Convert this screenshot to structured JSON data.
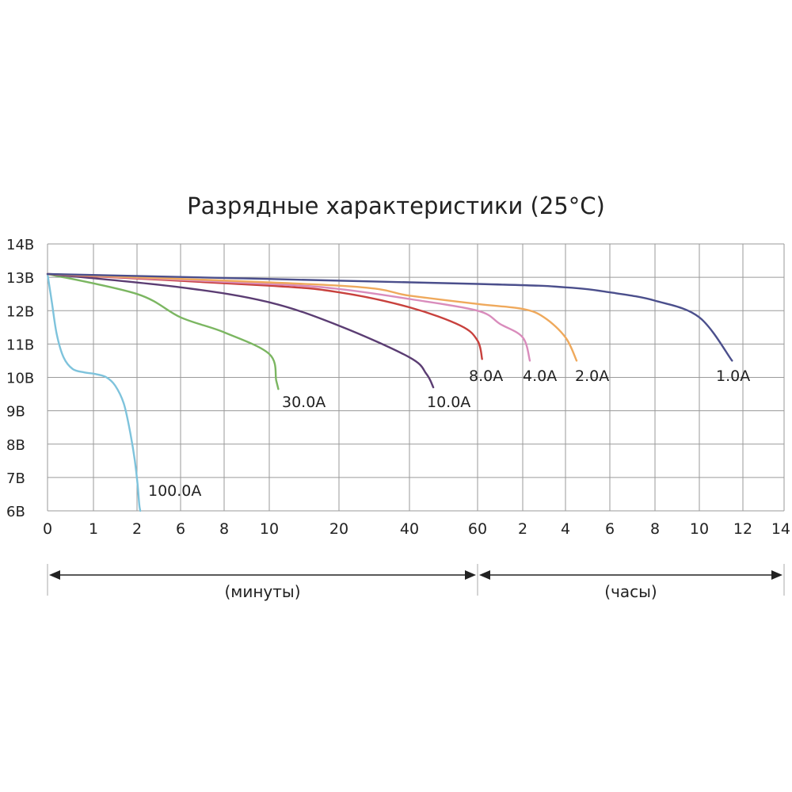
{
  "chart_data": {
    "type": "line",
    "title": "Разрядные характеристики (25°C)",
    "y_ticks": [
      "14В",
      "13В",
      "12В",
      "11В",
      "10В",
      "9В",
      "8В",
      "7В",
      "6В"
    ],
    "y_tick_values": [
      14,
      13,
      12,
      11,
      10,
      9,
      8,
      7,
      6
    ],
    "ylim": [
      6,
      14
    ],
    "x_ticks": [
      "0",
      "1",
      "2",
      "6",
      "8",
      "10",
      "20",
      "40",
      "60",
      "2",
      "4",
      "6",
      "8",
      "10",
      "12",
      "14"
    ],
    "x_tick_minutes": [
      0,
      1,
      2,
      6,
      8,
      10,
      20,
      40,
      60,
      120,
      240,
      360,
      480,
      600,
      720,
      840
    ],
    "x_units": [
      {
        "label": "(минуты)",
        "from_minutes": 0,
        "to_minutes": 60
      },
      {
        "label": "(часы)",
        "from_minutes": 60,
        "to_minutes": 840
      }
    ],
    "grid": true,
    "series": [
      {
        "name": "100.0A",
        "color": "#7ec3dc",
        "points": [
          [
            0,
            13.1
          ],
          [
            0.1,
            12.2
          ],
          [
            0.2,
            11.3
          ],
          [
            0.35,
            10.6
          ],
          [
            0.55,
            10.25
          ],
          [
            0.8,
            10.15
          ],
          [
            1.05,
            10.1
          ],
          [
            1.3,
            10.0
          ],
          [
            1.5,
            9.75
          ],
          [
            1.7,
            9.2
          ],
          [
            1.85,
            8.3
          ],
          [
            1.95,
            7.5
          ],
          [
            2.05,
            6.8
          ],
          [
            2.2,
            6.2
          ],
          [
            2.3,
            6.0
          ]
        ]
      },
      {
        "name": "30.0A",
        "color": "#7bb661",
        "points": [
          [
            0,
            13.1
          ],
          [
            2,
            12.5
          ],
          [
            6,
            11.8
          ],
          [
            8,
            11.35
          ],
          [
            10,
            10.7
          ],
          [
            11,
            9.9
          ],
          [
            11.3,
            9.65
          ]
        ]
      },
      {
        "name": "10.0A",
        "color": "#5b3d73",
        "points": [
          [
            0,
            13.1
          ],
          [
            6,
            12.7
          ],
          [
            10,
            12.25
          ],
          [
            20,
            11.55
          ],
          [
            40,
            10.6
          ],
          [
            45,
            10.1
          ],
          [
            47,
            9.7
          ]
        ]
      },
      {
        "name": "8.0A",
        "color": "#c8413d",
        "points": [
          [
            0,
            13.1
          ],
          [
            10,
            12.75
          ],
          [
            20,
            12.55
          ],
          [
            40,
            12.1
          ],
          [
            55,
            11.55
          ],
          [
            60,
            11.1
          ],
          [
            66,
            10.55
          ]
        ]
      },
      {
        "name": "4.0A",
        "color": "#d98cbc",
        "points": [
          [
            0,
            13.1
          ],
          [
            10,
            12.8
          ],
          [
            20,
            12.65
          ],
          [
            40,
            12.35
          ],
          [
            60,
            12.0
          ],
          [
            90,
            11.6
          ],
          [
            120,
            11.2
          ],
          [
            140,
            10.5
          ]
        ]
      },
      {
        "name": "2.0A",
        "color": "#efa95c",
        "points": [
          [
            0,
            13.1
          ],
          [
            20,
            12.75
          ],
          [
            40,
            12.45
          ],
          [
            60,
            12.2
          ],
          [
            120,
            12.05
          ],
          [
            180,
            11.8
          ],
          [
            240,
            11.2
          ],
          [
            270,
            10.5
          ]
        ]
      },
      {
        "name": "1.0A",
        "color": "#4b4f8c",
        "points": [
          [
            0,
            13.1
          ],
          [
            60,
            12.8
          ],
          [
            240,
            12.7
          ],
          [
            360,
            12.55
          ],
          [
            480,
            12.3
          ],
          [
            600,
            11.8
          ],
          [
            690,
            10.5
          ]
        ]
      }
    ]
  }
}
